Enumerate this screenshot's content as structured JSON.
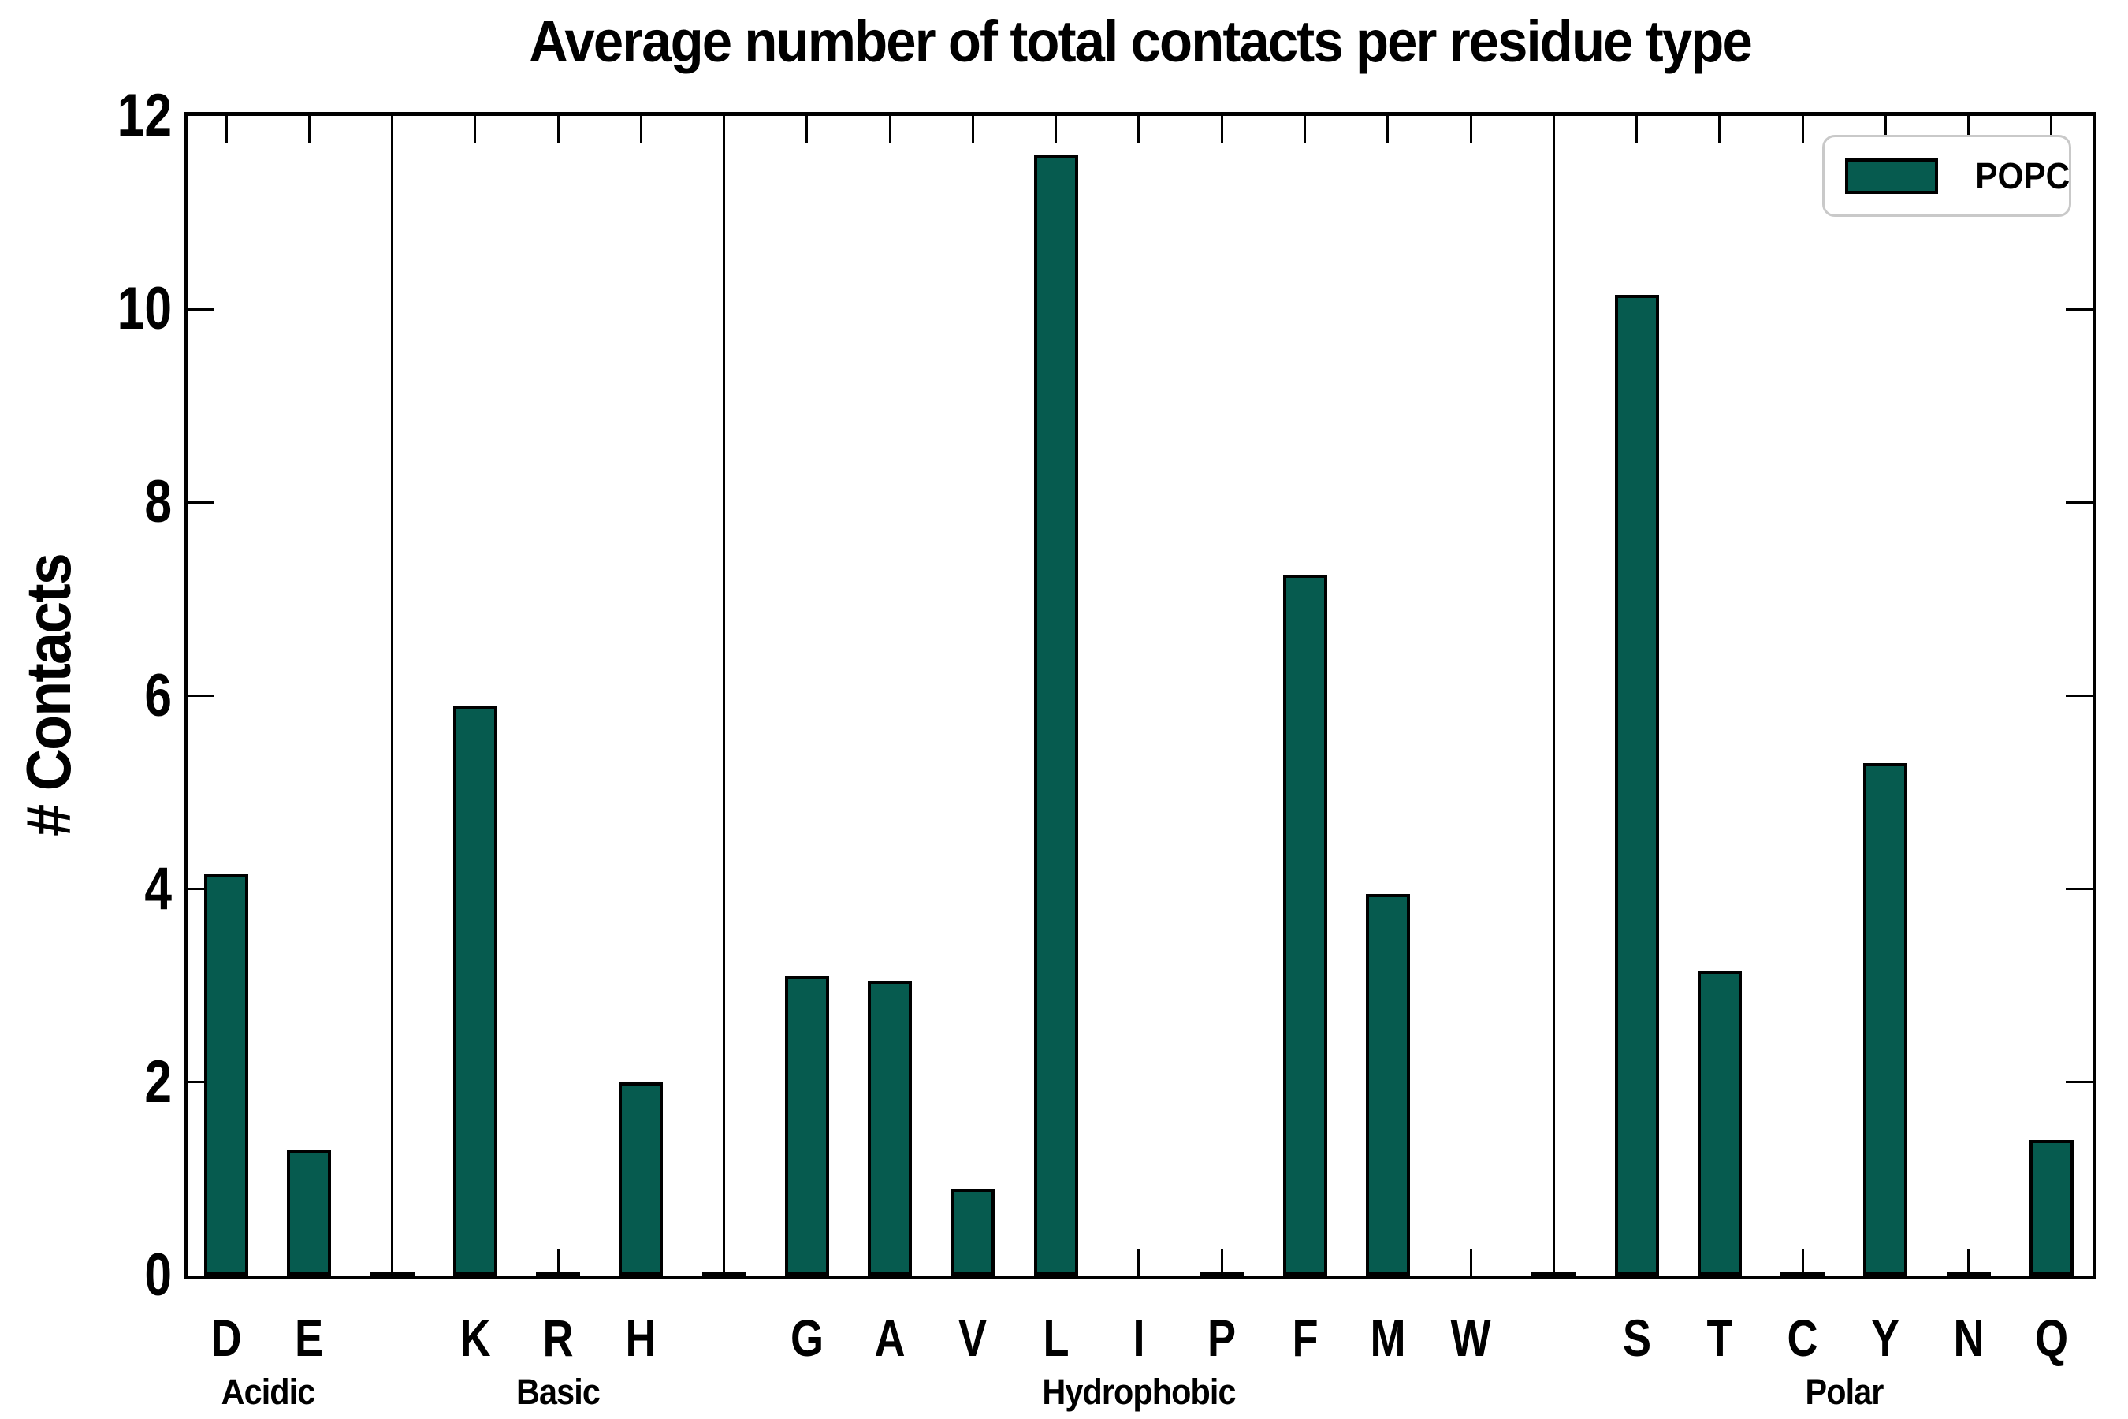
{
  "title": "Average number of total contacts per residue type",
  "y_axis": {
    "label": "# Contacts",
    "min": 0,
    "max": 12,
    "ticks": [
      0,
      2,
      4,
      6,
      8,
      10,
      12
    ]
  },
  "legend": {
    "entries": [
      {
        "label": "POPC",
        "color": "#065b4f"
      }
    ]
  },
  "colors": {
    "bar_fill": "#065b4f",
    "bar_edge": "#000000",
    "axis": "#000000",
    "legend_border": "#c9c9c9",
    "background": "#ffffff"
  },
  "chart_data": {
    "type": "bar",
    "title": "Average number of total contacts per residue type",
    "xlabel": "",
    "ylabel": "# Contacts",
    "ylim": [
      0,
      12
    ],
    "yticks": [
      0,
      2,
      4,
      6,
      8,
      10,
      12
    ],
    "grid": false,
    "legend_position": "upper right",
    "series_name": "POPC",
    "group_dividers": true,
    "groups": [
      {
        "label": "Acidic",
        "categories": [
          "D",
          "E"
        ],
        "values": [
          4.15,
          1.3
        ]
      },
      {
        "label": "Basic",
        "categories": [
          "K",
          "R",
          "H"
        ],
        "values": [
          5.9,
          0.02,
          2.0
        ]
      },
      {
        "label": "Hydrophobic",
        "categories": [
          "G",
          "A",
          "V",
          "L",
          "I",
          "P",
          "F",
          "M",
          "W"
        ],
        "values": [
          3.1,
          3.05,
          0.9,
          11.6,
          0.0,
          0.02,
          7.25,
          3.95,
          0.0
        ]
      },
      {
        "label": "Polar",
        "categories": [
          "S",
          "T",
          "C",
          "Y",
          "N",
          "Q"
        ],
        "values": [
          10.15,
          3.15,
          0.02,
          5.3,
          0.02,
          1.4
        ]
      }
    ]
  }
}
